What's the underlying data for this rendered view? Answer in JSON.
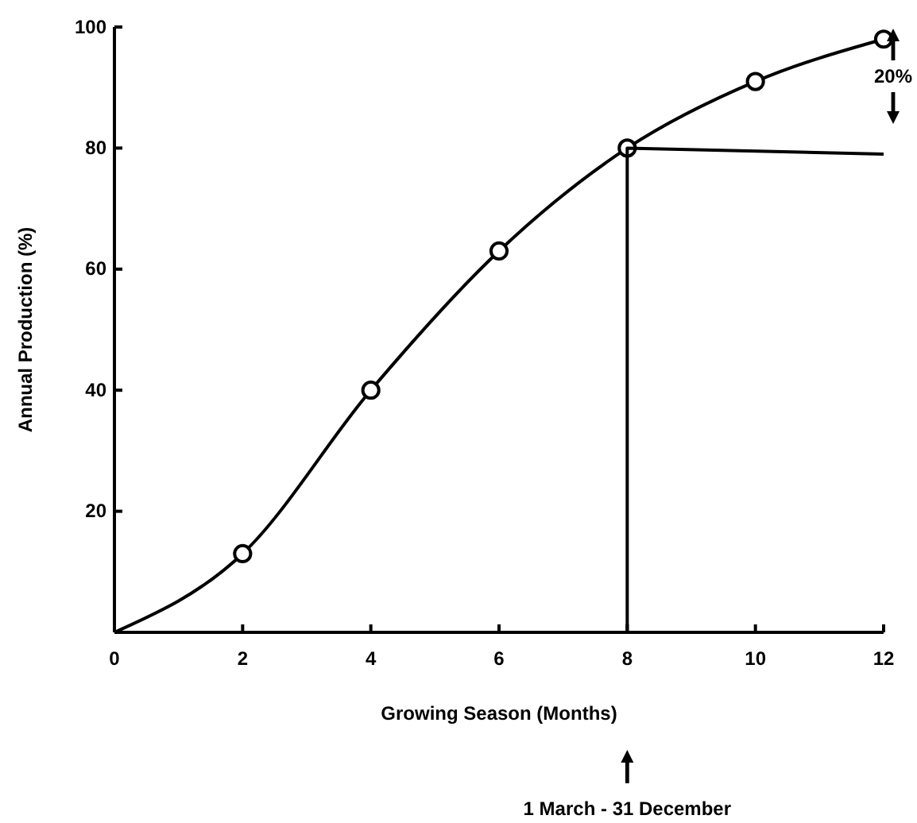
{
  "chart_data": {
    "type": "line",
    "xlabel": "Growing Season (Months)",
    "ylabel": "Annual Production (%)",
    "xlim": [
      0,
      12
    ],
    "xticks": [
      0,
      2,
      4,
      6,
      8,
      10,
      12
    ],
    "ylim": [
      0,
      100
    ],
    "yticks": [
      20,
      40,
      60,
      80,
      100
    ],
    "grid": false,
    "line_style": "solid",
    "series": [
      {
        "color": "#000000",
        "marker": "none",
        "x": [
          0,
          2,
          4,
          6,
          8,
          10,
          12
        ],
        "values": [
          0,
          13,
          40,
          63,
          80,
          91,
          98
        ]
      },
      {
        "type": "scatter",
        "color": "#000000",
        "marker": "circle",
        "x": [
          2,
          4,
          6,
          8,
          10,
          12
        ],
        "values": [
          13,
          40,
          63,
          80,
          91,
          98
        ]
      },
      {
        "color": "#000000",
        "marker": "none",
        "x": [
          8,
          8,
          12
        ],
        "values": [
          0,
          80,
          79
        ]
      }
    ],
    "annotations": [
      "20%",
      "1 March - 31 December"
    ]
  }
}
